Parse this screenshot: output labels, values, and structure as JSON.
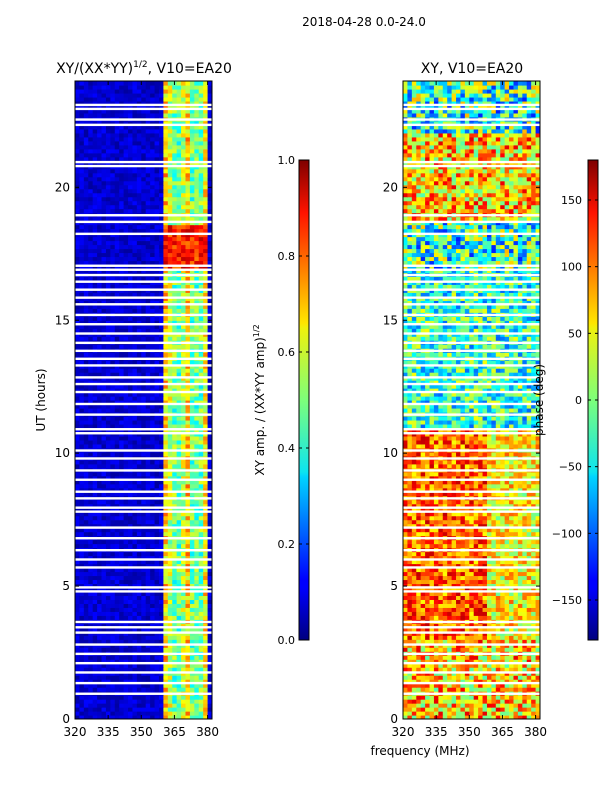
{
  "suptitle": "2018-04-28 0.0-24.0",
  "chart_data": [
    {
      "type": "heatmap",
      "title": "XY/(XX*YY)^1/2, V10=EA20",
      "title_main": "XY/(XX*YY)",
      "title_sup": "1/2",
      "title_tail": ", V10=EA20",
      "xlabel": "",
      "ylabel": "UT (hours)",
      "xlim": [
        320,
        382
      ],
      "ylim": [
        0,
        24
      ],
      "xticks": [
        320,
        335,
        350,
        365,
        380
      ],
      "yticks": [
        0,
        5,
        10,
        15,
        20
      ],
      "colormap": "jet",
      "colorbar": {
        "label": "XY amp. / (XX*YY amp)^1/2",
        "label_main": "XY amp. / (XX*YY amp)",
        "label_sup": "1/2",
        "range": [
          0.0,
          1.0
        ],
        "ticks": [
          "0.0",
          "0.2",
          "0.4",
          "0.6",
          "0.8",
          "1.0"
        ]
      },
      "description": "Mostly low amplitude (dark blue) below ~360 MHz; moderate amplitude bands (cyan-yellow) between ~360 and ~380 MHz; peak (orange/red) near 17-18.5 UT at 360-380 MHz."
    },
    {
      "type": "heatmap",
      "title": "XY, V10=EA20",
      "xlabel": "frequency (MHz)",
      "ylabel": "",
      "xlim": [
        320,
        382
      ],
      "ylim": [
        0,
        24
      ],
      "xticks": [
        320,
        335,
        350,
        365,
        380
      ],
      "yticks": [
        0,
        5,
        10,
        15,
        20
      ],
      "colormap": "jet",
      "colorbar": {
        "label": "phase (deg)",
        "range": [
          -180,
          180
        ],
        "ticks": [
          "−150",
          "−100",
          "−50",
          "0",
          "50",
          "100",
          "150"
        ]
      },
      "description": "Phase varies widely; mostly blue/cyan above 11 UT, mostly orange/red between 3 and 11 UT."
    }
  ],
  "gaps_ut": [
    0.95,
    1.35,
    1.75,
    2.1,
    2.45,
    2.8,
    3.25,
    3.45,
    3.65,
    4.8,
    4.95,
    5.7,
    6.0,
    6.35,
    6.8,
    7.2,
    7.8,
    7.95,
    8.3,
    8.55,
    9.0,
    9.35,
    9.8,
    10.1,
    10.75,
    10.9,
    11.45,
    11.85,
    12.3,
    12.6,
    12.85,
    13.3,
    13.55,
    13.85,
    14.15,
    14.5,
    14.85,
    15.2,
    15.6,
    15.85,
    16.15,
    16.45,
    16.7,
    16.9,
    17.05,
    18.25,
    18.7,
    18.95,
    20.8,
    20.95,
    22.35,
    22.55,
    22.95,
    23.1
  ]
}
